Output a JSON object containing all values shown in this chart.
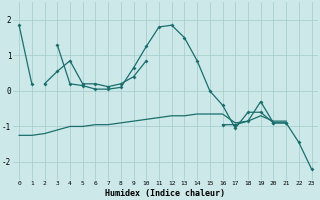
{
  "xlabel": "Humidex (Indice chaleur)",
  "background_color": "#cde8e8",
  "grid_color": "#aacece",
  "line_color": "#1a6e6e",
  "x_values": [
    0,
    1,
    2,
    3,
    4,
    5,
    6,
    7,
    8,
    9,
    10,
    11,
    12,
    13,
    14,
    15,
    16,
    17,
    18,
    19,
    20,
    21,
    22,
    23
  ],
  "series1": [
    1.85,
    0.2,
    null,
    1.3,
    0.2,
    0.15,
    0.05,
    0.05,
    0.1,
    0.65,
    1.25,
    1.8,
    1.85,
    1.5,
    0.85,
    0.0,
    -0.4,
    -1.05,
    -0.6,
    -0.6,
    -0.9,
    -0.9,
    -1.45,
    -2.2
  ],
  "series2": [
    -1.25,
    -1.25,
    -1.2,
    -1.1,
    -1.0,
    -1.0,
    -0.95,
    -0.95,
    -0.9,
    -0.85,
    -0.8,
    -0.75,
    -0.7,
    -0.7,
    -0.65,
    -0.65,
    -0.65,
    -0.9,
    -0.85,
    -0.7,
    -0.85,
    -0.85,
    null,
    null
  ],
  "series3": [
    null,
    null,
    0.2,
    0.55,
    0.85,
    0.2,
    0.2,
    0.12,
    0.2,
    0.4,
    0.85,
    null,
    null,
    null,
    null,
    null,
    -0.95,
    -0.95,
    -0.85,
    -0.3,
    -0.9,
    -0.9,
    null,
    null
  ],
  "ylim": [
    -2.5,
    2.5
  ],
  "xlim": [
    -0.5,
    23.5
  ],
  "yticks": [
    -2,
    -1,
    0,
    1,
    2
  ]
}
